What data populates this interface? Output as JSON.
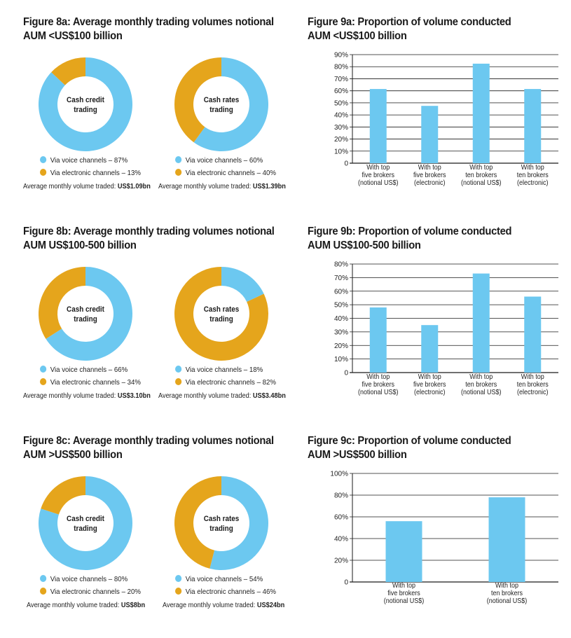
{
  "colors": {
    "voice": "#6CC8F0",
    "electronic": "#E5A51C",
    "axis": "#1a1a1a"
  },
  "chart_data": [
    {
      "id": "fig8a",
      "type": "pie",
      "title_lines": [
        "Figure 8a: Average monthly trading volumes notional",
        "AUM <US$100 billion"
      ],
      "donuts": [
        {
          "center_label": [
            "Cash credit",
            "trading"
          ],
          "legend": [
            "Via voice channels – 87%",
            "Via electronic channels – 13%"
          ],
          "slices": [
            {
              "name": "Via voice channels",
              "value": 87
            },
            {
              "name": "Via electronic channels",
              "value": 13
            }
          ],
          "avg_label": "Average monthly volume traded:",
          "avg_value": "US$1.09bn"
        },
        {
          "center_label": [
            "Cash rates",
            "trading"
          ],
          "legend": [
            "Via voice channels – 60%",
            "Via electronic channels – 40%"
          ],
          "slices": [
            {
              "name": "Via voice channels",
              "value": 60
            },
            {
              "name": "Via electronic channels",
              "value": 40
            }
          ],
          "avg_label": "Average monthly volume traded:",
          "avg_value": "US$1.39bn"
        }
      ]
    },
    {
      "id": "fig8b",
      "type": "pie",
      "title_lines": [
        "Figure 8b: Average monthly trading volumes notional",
        "AUM US$100-500 billion"
      ],
      "donuts": [
        {
          "center_label": [
            "Cash credit",
            "trading"
          ],
          "legend": [
            "Via voice channels – 66%",
            "Via electronic channels – 34%"
          ],
          "slices": [
            {
              "name": "Via voice channels",
              "value": 66
            },
            {
              "name": "Via electronic channels",
              "value": 34
            }
          ],
          "avg_label": "Average monthly volume traded:",
          "avg_value": "US$3.10bn"
        },
        {
          "center_label": [
            "Cash rates",
            "trading"
          ],
          "legend": [
            "Via voice channels – 18%",
            "Via electronic channels – 82%"
          ],
          "slices": [
            {
              "name": "Via voice channels",
              "value": 18
            },
            {
              "name": "Via electronic channels",
              "value": 82
            }
          ],
          "avg_label": "Average monthly volume traded:",
          "avg_value": "US$3.48bn"
        }
      ]
    },
    {
      "id": "fig8c",
      "type": "pie",
      "title_lines": [
        "Figure 8c: Average monthly trading volumes notional",
        "AUM >US$500 billion"
      ],
      "donuts": [
        {
          "center_label": [
            "Cash credit",
            "trading"
          ],
          "legend": [
            "Via voice channels – 80%",
            "Via electronic channels – 20%"
          ],
          "slices": [
            {
              "name": "Via voice channels",
              "value": 80
            },
            {
              "name": "Via electronic channels",
              "value": 20
            }
          ],
          "avg_label": "Average monthly volume traded:",
          "avg_value": "US$8bn"
        },
        {
          "center_label": [
            "Cash rates",
            "trading"
          ],
          "legend": [
            "Via voice channels – 54%",
            "Via electronic channels – 46%"
          ],
          "slices": [
            {
              "name": "Via voice channels",
              "value": 54
            },
            {
              "name": "Via electronic channels",
              "value": 46
            }
          ],
          "avg_label": "Average monthly volume traded:",
          "avg_value": "US$24bn"
        }
      ]
    },
    {
      "id": "fig9a",
      "type": "bar",
      "title_lines": [
        "Figure 9a: Proportion of volume conducted",
        "AUM <US$100 billion"
      ],
      "categories": [
        [
          "With top",
          "five brokers",
          "(notional US$)"
        ],
        [
          "With top",
          "five brokers",
          "(electronic)"
        ],
        [
          "With top",
          "ten brokers",
          "(notional US$)"
        ],
        [
          "With top",
          "ten brokers",
          "(electronic)"
        ]
      ],
      "values": [
        61.5,
        47.5,
        82.5,
        61.5
      ],
      "ylim": [
        0,
        90
      ],
      "yticks": [
        "0",
        "10%",
        "20%",
        "30%",
        "40%",
        "50%",
        "60%",
        "70%",
        "80%",
        "90%"
      ],
      "grid": true
    },
    {
      "id": "fig9b",
      "type": "bar",
      "title_lines": [
        "Figure 9b: Proportion of volume conducted",
        "AUM US$100-500 billion"
      ],
      "categories": [
        [
          "With top",
          "five brokers",
          "(notional US$)"
        ],
        [
          "With top",
          "five brokers",
          "(electronic)"
        ],
        [
          "With top",
          "ten brokers",
          "(notional US$)"
        ],
        [
          "With top",
          "ten brokers",
          "(electronic)"
        ]
      ],
      "values": [
        48,
        35,
        73,
        56
      ],
      "ylim": [
        0,
        80
      ],
      "yticks": [
        "0",
        "10%",
        "20%",
        "30%",
        "40%",
        "50%",
        "60%",
        "70%",
        "80%"
      ],
      "grid": true
    },
    {
      "id": "fig9c",
      "type": "bar",
      "title_lines": [
        "Figure 9c: Proportion of volume conducted",
        "AUM >US$500 billion"
      ],
      "categories": [
        [
          "With top",
          "five brokers",
          "(notional US$)"
        ],
        [
          "With top",
          "ten brokers",
          "(notional US$)"
        ]
      ],
      "values": [
        56,
        78
      ],
      "ylim": [
        0,
        100
      ],
      "yticks": [
        "0",
        "20%",
        "40%",
        "60%",
        "80%",
        "100%"
      ],
      "grid": true
    }
  ]
}
